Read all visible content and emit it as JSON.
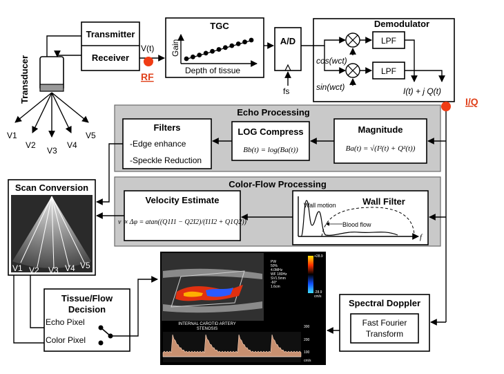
{
  "transducer": {
    "label": "Transducer",
    "elements": [
      "V1",
      "V2",
      "V3",
      "V4",
      "V5"
    ]
  },
  "transmitter": {
    "label": "Transmitter"
  },
  "receiver": {
    "label": "Receiver"
  },
  "signal_v": {
    "label": "V(t)"
  },
  "rf_point": {
    "label": "RF",
    "color": "#f03c14"
  },
  "tgc": {
    "title": "TGC",
    "y_label": "Gain",
    "x_label": "Depth of tissue"
  },
  "ad": {
    "label": "A/D",
    "sample_label": "fs"
  },
  "demodulator": {
    "title": "Demodulator",
    "lpf1": "LPF",
    "lpf2": "LPF",
    "cos_label": "cos(wct)",
    "sin_label": "sin(wct)",
    "output": "I(t) + j Q(t)"
  },
  "iq_point": {
    "label": "I/Q",
    "color": "#f03c14"
  },
  "echo_processing": {
    "title": "Echo Processing",
    "filters_title": "Filters",
    "filter_items": [
      "-Edge enhance",
      "-Speckle Reduction"
    ],
    "log_title": "LOG Compress",
    "log_formula": "Bb(t) = log(Ba(t))",
    "magnitude_title": "Magnitude",
    "magnitude_formula": "Ba(t) = √(I²(t) + Q²(t))"
  },
  "color_flow": {
    "title": "Color-Flow Processing",
    "velocity_title": "Velocity Estimate",
    "velocity_formula": "v ∝ Δφ = atan((Q1I1 − Q2I2)/(I1I2 + Q1Q2))",
    "wall_title": "Wall Filter",
    "wall_motion": "Wall motion",
    "blood_flow": "Blood flow",
    "axis_f": "f"
  },
  "scan_conversion": {
    "title": "Scan Conversion",
    "lines": [
      "V1",
      "V2",
      "V3",
      "V4",
      "V5"
    ]
  },
  "tissue_flow": {
    "title_line1": "Tissue/Flow",
    "title_line2": "Decision",
    "echo_pixel": "Echo Pixel",
    "color_pixel": "Color Pixel"
  },
  "spectral_doppler": {
    "title": "Spectral Doppler",
    "fft_line1": "Fast Fourier",
    "fft_line2": "Transform"
  },
  "display_image": {
    "caption_line1": "INTERNAL CAROTID ARTERY",
    "caption_line2": "STENOSIS",
    "scale_top": "+28.9",
    "scale_bottom": "-28.9",
    "scale_unit": "cm/s",
    "params": [
      "PW",
      "50%",
      "4.0MHz",
      "WF 180Hz",
      "SV1.5mm",
      "-60°",
      "1.6cm"
    ],
    "spectral_ticks": [
      "300",
      "200",
      "100",
      "cm/s"
    ]
  }
}
